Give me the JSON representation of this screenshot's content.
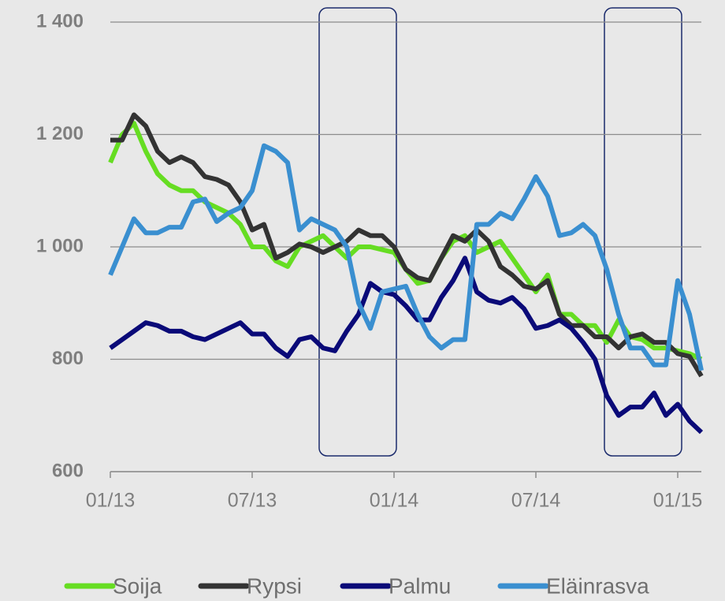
{
  "chart_data": {
    "type": "line",
    "categories": [
      "01/13",
      null,
      null,
      null,
      null,
      null,
      null,
      null,
      null,
      null,
      null,
      null,
      "07/13",
      null,
      null,
      null,
      null,
      null,
      null,
      null,
      null,
      null,
      null,
      null,
      "01/14",
      null,
      null,
      null,
      null,
      null,
      null,
      null,
      null,
      null,
      null,
      null,
      "07/14",
      null,
      null,
      null,
      null,
      null,
      null,
      null,
      null,
      null,
      null,
      null,
      "01/15",
      null,
      null
    ],
    "ylim": [
      600,
      1400
    ],
    "yticks": [
      600,
      800,
      {
        "value": 1000,
        "label": "1 000"
      },
      {
        "value": 1200,
        "label": "1 200"
      },
      {
        "value": 1400,
        "label": "1 400"
      }
    ],
    "grid": true,
    "legend": "bottom",
    "series": [
      {
        "name": "Soija",
        "color": "#66dd22",
        "values": [
          1150,
          1200,
          1220,
          1170,
          1130,
          1110,
          1100,
          1100,
          1080,
          1070,
          1060,
          1040,
          1000,
          1000,
          975,
          965,
          1000,
          1010,
          1020,
          1000,
          980,
          1000,
          1000,
          995,
          990,
          960,
          935,
          940,
          980,
          1010,
          1020,
          990,
          1000,
          1010,
          980,
          950,
          920,
          950,
          880,
          880,
          860,
          860,
          830,
          870,
          840,
          835,
          820,
          820,
          815,
          810,
          800
        ]
      },
      {
        "name": "Rypsi",
        "color": "#333333",
        "values": [
          1190,
          1190,
          1235,
          1215,
          1170,
          1150,
          1160,
          1150,
          1125,
          1120,
          1110,
          1080,
          1030,
          1040,
          980,
          990,
          1005,
          1000,
          990,
          1000,
          1010,
          1030,
          1020,
          1020,
          1000,
          960,
          945,
          940,
          980,
          1020,
          1010,
          1030,
          1010,
          965,
          950,
          930,
          925,
          940,
          880,
          860,
          860,
          840,
          840,
          820,
          840,
          845,
          830,
          830,
          810,
          805,
          770
        ]
      },
      {
        "name": "Palmu",
        "color": "#0a0a78",
        "values": [
          820,
          835,
          850,
          865,
          860,
          850,
          850,
          840,
          835,
          845,
          855,
          865,
          845,
          845,
          820,
          805,
          835,
          840,
          820,
          815,
          850,
          880,
          935,
          920,
          915,
          895,
          870,
          870,
          910,
          940,
          980,
          920,
          905,
          900,
          910,
          890,
          855,
          860,
          870,
          855,
          830,
          800,
          735,
          700,
          715,
          715,
          740,
          700,
          720,
          690,
          670
        ]
      },
      {
        "name": "Eläinrasva",
        "color": "#3a8fd0",
        "values": [
          950,
          1000,
          1050,
          1025,
          1025,
          1035,
          1035,
          1080,
          1085,
          1045,
          1060,
          1070,
          1100,
          1180,
          1170,
          1150,
          1030,
          1050,
          1040,
          1030,
          1000,
          900,
          855,
          920,
          925,
          930,
          880,
          840,
          820,
          835,
          835,
          1040,
          1040,
          1060,
          1050,
          1085,
          1125,
          1090,
          1020,
          1025,
          1040,
          1020,
          960,
          880,
          820,
          820,
          790,
          790,
          940,
          880,
          780
        ]
      }
    ]
  }
}
